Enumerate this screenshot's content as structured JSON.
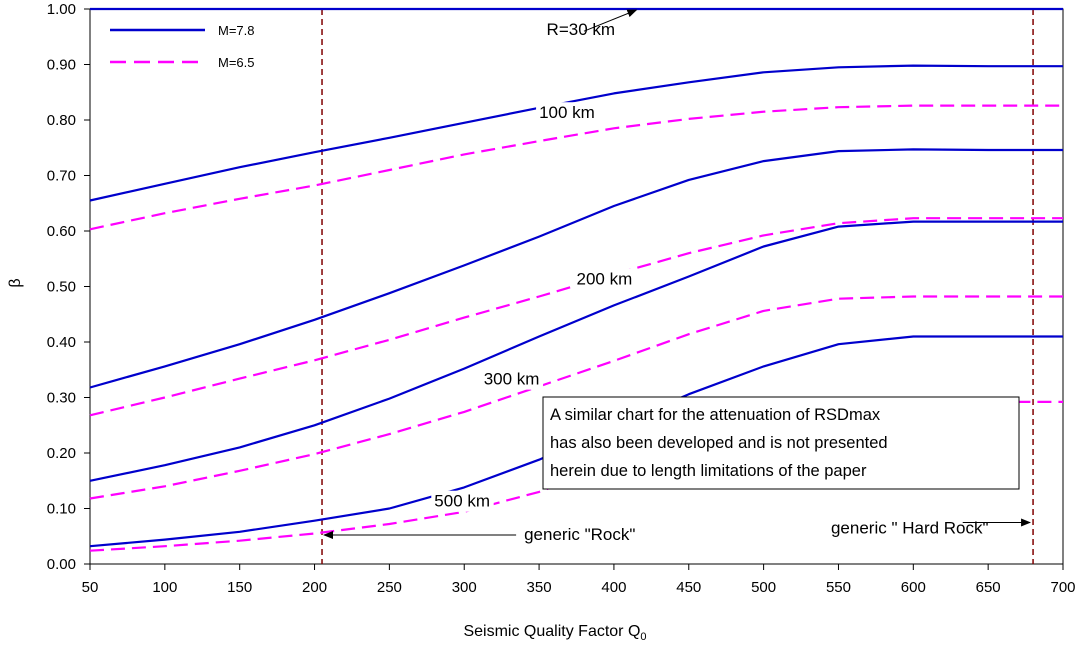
{
  "chart_data": {
    "type": "line",
    "xlabel": "Seismic Quality Factor Q",
    "xlabel_subscript": "0",
    "ylabel": "β",
    "xlim": [
      50,
      700
    ],
    "ylim": [
      0,
      1
    ],
    "xticks": [
      "50",
      "100",
      "150",
      "200",
      "250",
      "300",
      "350",
      "400",
      "450",
      "500",
      "550",
      "600",
      "650",
      "700"
    ],
    "yticks": [
      "0.00",
      "0.10",
      "0.20",
      "0.30",
      "0.40",
      "0.50",
      "0.60",
      "0.70",
      "0.80",
      "0.90",
      "1.00"
    ],
    "grid": false,
    "legend_position": "top-left",
    "legend": [
      {
        "name": "M=7.8",
        "color": "#0000cc",
        "dash": "solid"
      },
      {
        "name": "M=6.5",
        "color": "#ff00ff",
        "dash": "dashed"
      }
    ],
    "series": [
      {
        "group": "M=7.8",
        "distance": "30 km",
        "x": [
          50,
          700
        ],
        "y": [
          1.0,
          1.0
        ]
      },
      {
        "group": "M=7.8",
        "distance": "100 km",
        "x": [
          50,
          100,
          150,
          200,
          250,
          300,
          350,
          400,
          450,
          500,
          550,
          600,
          650,
          700
        ],
        "y": [
          0.655,
          0.685,
          0.715,
          0.742,
          0.768,
          0.795,
          0.822,
          0.848,
          0.868,
          0.886,
          0.895,
          0.898,
          0.897,
          0.897
        ]
      },
      {
        "group": "M=6.5",
        "distance": "100 km",
        "x": [
          50,
          100,
          150,
          200,
          250,
          300,
          350,
          400,
          450,
          500,
          550,
          600,
          650,
          700
        ],
        "y": [
          0.603,
          0.632,
          0.658,
          0.682,
          0.71,
          0.738,
          0.762,
          0.785,
          0.802,
          0.815,
          0.823,
          0.826,
          0.826,
          0.826
        ]
      },
      {
        "group": "M=7.8",
        "distance": "200 km",
        "x": [
          50,
          100,
          150,
          200,
          250,
          300,
          350,
          400,
          450,
          500,
          550,
          600,
          650,
          700
        ],
        "y": [
          0.318,
          0.356,
          0.396,
          0.44,
          0.488,
          0.538,
          0.59,
          0.645,
          0.692,
          0.726,
          0.744,
          0.747,
          0.746,
          0.746
        ]
      },
      {
        "group": "M=6.5",
        "distance": "200 km",
        "x": [
          50,
          100,
          150,
          200,
          250,
          300,
          350,
          400,
          450,
          500,
          550,
          600,
          650,
          700
        ],
        "y": [
          0.268,
          0.3,
          0.334,
          0.367,
          0.404,
          0.444,
          0.482,
          0.522,
          0.56,
          0.592,
          0.614,
          0.623,
          0.623,
          0.623
        ]
      },
      {
        "group": "M=7.8",
        "distance": "300 km",
        "x": [
          50,
          100,
          150,
          200,
          250,
          300,
          350,
          400,
          450,
          500,
          550,
          600,
          650,
          700
        ],
        "y": [
          0.15,
          0.178,
          0.21,
          0.25,
          0.298,
          0.352,
          0.41,
          0.466,
          0.518,
          0.572,
          0.608,
          0.617,
          0.617,
          0.617
        ]
      },
      {
        "group": "M=6.5",
        "distance": "300 km",
        "x": [
          50,
          100,
          150,
          200,
          250,
          300,
          350,
          400,
          450,
          500,
          550,
          600,
          650,
          700
        ],
        "y": [
          0.118,
          0.14,
          0.168,
          0.198,
          0.234,
          0.274,
          0.32,
          0.366,
          0.414,
          0.456,
          0.478,
          0.482,
          0.482,
          0.482
        ]
      },
      {
        "group": "M=7.8",
        "distance": "500 km",
        "x": [
          50,
          100,
          150,
          200,
          250,
          300,
          350,
          400,
          450,
          500,
          550,
          600,
          650,
          700
        ],
        "y": [
          0.032,
          0.044,
          0.058,
          0.078,
          0.1,
          0.138,
          0.188,
          0.248,
          0.306,
          0.356,
          0.396,
          0.41,
          0.41,
          0.41
        ]
      },
      {
        "group": "M=6.5",
        "distance": "500 km",
        "x": [
          50,
          100,
          150,
          200,
          250,
          300,
          350,
          400,
          450,
          500,
          550,
          600,
          650,
          700
        ],
        "y": [
          0.024,
          0.032,
          0.042,
          0.055,
          0.072,
          0.094,
          0.13,
          0.18,
          0.228,
          0.27,
          0.285,
          0.292,
          0.292,
          0.292
        ]
      }
    ],
    "distance_labels": [
      {
        "text": "R=30 km",
        "x": 355,
        "y": 0.955
      },
      {
        "text": "100 km",
        "x": 350,
        "y": 0.805
      },
      {
        "text": "200 km",
        "x": 375,
        "y": 0.505
      },
      {
        "text": "300 km",
        "x": 313,
        "y": 0.325
      },
      {
        "text": "500 km",
        "x": 280,
        "y": 0.105
      }
    ],
    "vlines": [
      {
        "x": 205,
        "color": "#800000"
      },
      {
        "x": 680,
        "color": "#800000"
      }
    ],
    "annotations": [
      {
        "text": "generic \"Rock\"",
        "x": 340,
        "y": 0.045
      },
      {
        "text": "generic \" Hard Rock\"",
        "x": 545,
        "y": 0.055
      }
    ],
    "note": [
      "A similar chart for the attenuation of RSDmax",
      "has also been developed and is not presented",
      "herein due to length limitations of the paper"
    ]
  }
}
